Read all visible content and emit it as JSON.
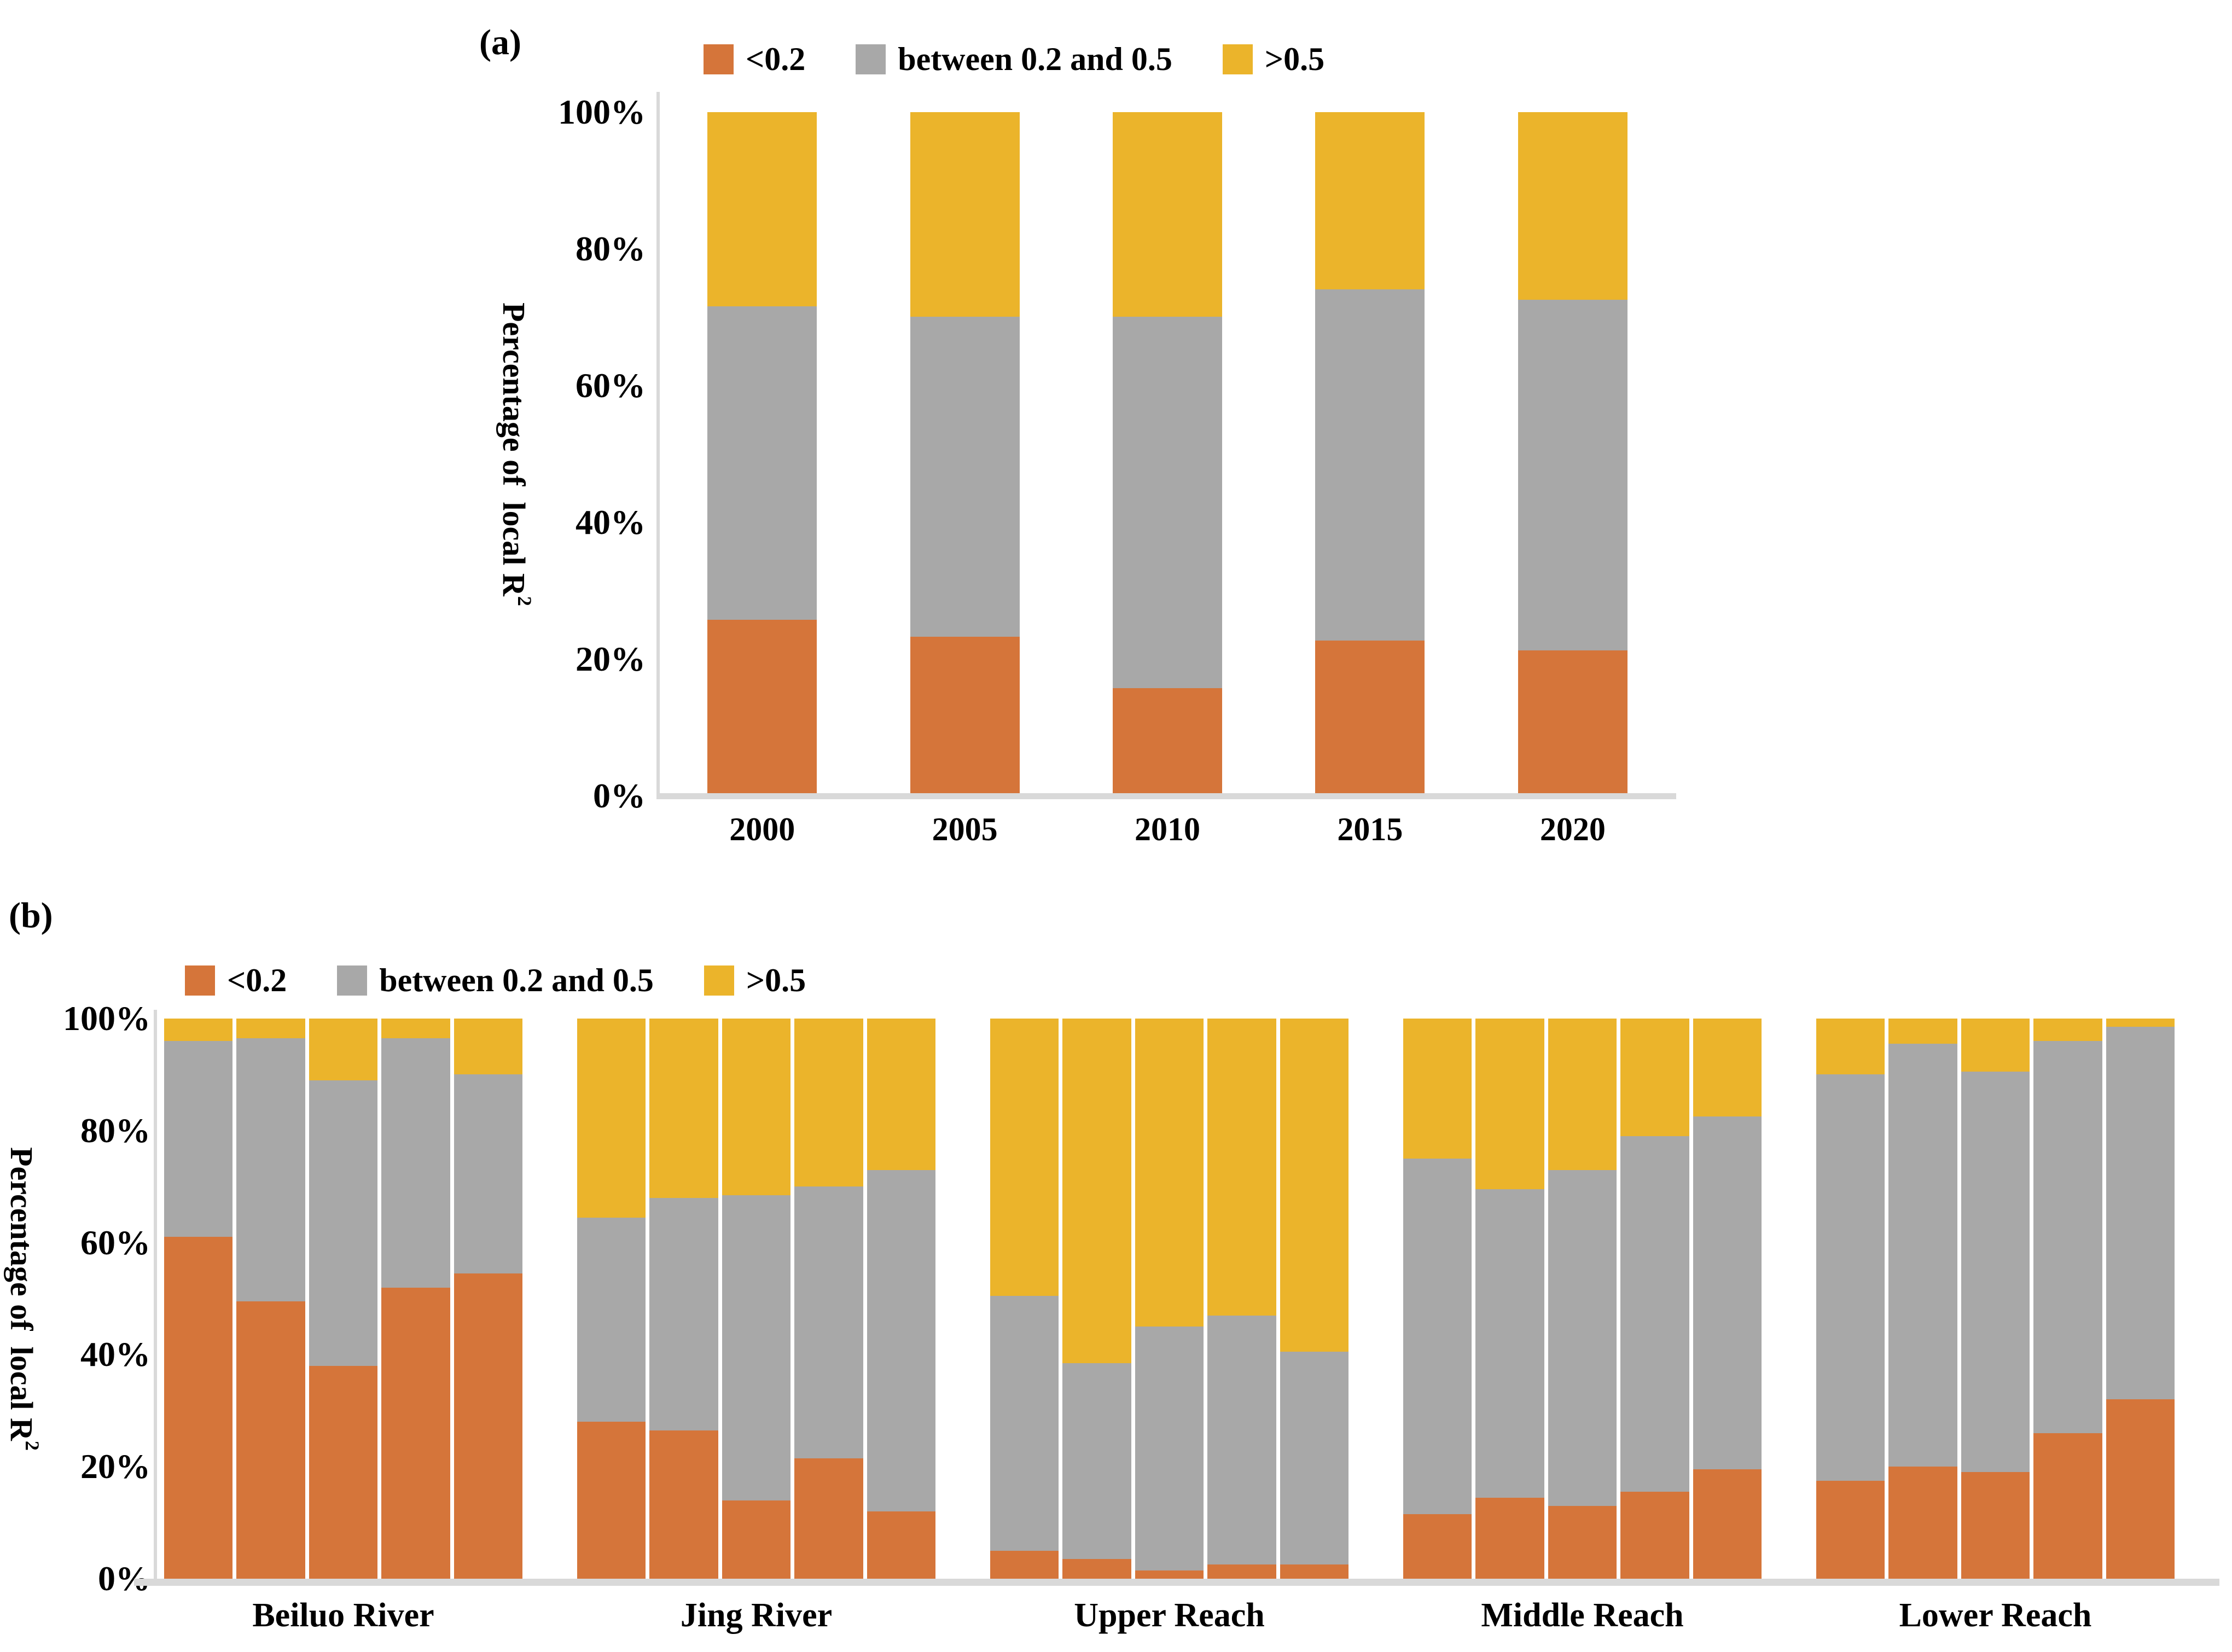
{
  "colors": {
    "lt02": "#D5753A",
    "between": "#A8A8A8",
    "gt05": "#EBB42B",
    "axis": "#D9D9D9",
    "text": "#000000",
    "background": "#FFFFFF"
  },
  "legend": {
    "items": [
      {
        "key": "lt02",
        "label": "<0.2"
      },
      {
        "key": "between",
        "label": "between 0.2 and 0.5"
      },
      {
        "key": "gt05",
        "label": ">0.5"
      }
    ]
  },
  "panel_a": {
    "label": "(a)",
    "y_axis_title": "Percentage of  local R",
    "y_axis_title_sup": "2",
    "y_ticks": [
      "0%",
      "20%",
      "40%",
      "60%",
      "80%",
      "100%"
    ],
    "categories": [
      "2000",
      "2005",
      "2010",
      "2015",
      "2020"
    ]
  },
  "panel_b": {
    "label": "(b)",
    "y_axis_title": "Percentage of  local R",
    "y_axis_title_sup": "2",
    "y_ticks": [
      "0%",
      "20%",
      "40%",
      "60%",
      "80%",
      "100%"
    ],
    "groups": [
      "Beiluo River",
      "Jing River",
      "Upper Reach",
      "Middle Reach",
      "Lower Reach"
    ]
  },
  "chart_data": [
    {
      "type": "bar",
      "stacked": true,
      "panel": "a",
      "title": "",
      "xlabel": "",
      "ylabel": "Percentage of local R²",
      "ylim": [
        0,
        100
      ],
      "grid": false,
      "legend_position": "top",
      "categories": [
        "2000",
        "2005",
        "2010",
        "2015",
        "2020"
      ],
      "series": [
        {
          "name": "<0.2",
          "key": "lt02",
          "values": [
            25.5,
            23,
            15.5,
            22.5,
            21
          ]
        },
        {
          "name": "between 0.2 and 0.5",
          "key": "between",
          "values": [
            46,
            47,
            54.5,
            51.5,
            51.5
          ]
        },
        {
          "name": ">0.5",
          "key": "gt05",
          "values": [
            28.5,
            30,
            30,
            26,
            27.5
          ]
        }
      ]
    },
    {
      "type": "bar",
      "stacked": true,
      "panel": "b",
      "title": "",
      "xlabel": "",
      "ylabel": "Percentage of local R²",
      "ylim": [
        0,
        100
      ],
      "grid": false,
      "legend_position": "top",
      "bars_per_group": 5,
      "groups": [
        {
          "label": "Beiluo River",
          "series": {
            "lt02": [
              61,
              49.5,
              38,
              52,
              54.5
            ],
            "between": [
              35,
              47,
              51,
              44.5,
              35.5
            ],
            "gt05": [
              4,
              3.5,
              11,
              3.5,
              10
            ]
          }
        },
        {
          "label": "Jing River",
          "series": {
            "lt02": [
              28,
              26.5,
              14,
              21.5,
              12
            ],
            "between": [
              36.5,
              41.5,
              54.5,
              48.5,
              61
            ],
            "gt05": [
              35.5,
              32,
              31.5,
              30,
              27
            ]
          }
        },
        {
          "label": "Upper Reach",
          "series": {
            "lt02": [
              5,
              3.5,
              1.5,
              2.5,
              2.5
            ],
            "between": [
              45.5,
              35,
              43.5,
              44.5,
              38
            ],
            "gt05": [
              49.5,
              61.5,
              55,
              53,
              59.5
            ]
          }
        },
        {
          "label": "Middle Reach",
          "series": {
            "lt02": [
              11.5,
              14.5,
              13,
              15.5,
              19.5
            ],
            "between": [
              63.5,
              55,
              60,
              63.5,
              63
            ],
            "gt05": [
              25,
              30.5,
              27,
              21,
              17.5
            ]
          }
        },
        {
          "label": "Lower Reach",
          "series": {
            "lt02": [
              17.5,
              20,
              19,
              26,
              32
            ],
            "between": [
              72.5,
              75.5,
              71.5,
              70,
              66.5
            ],
            "gt05": [
              10,
              4.5,
              9.5,
              4,
              1.5
            ]
          }
        }
      ]
    }
  ]
}
